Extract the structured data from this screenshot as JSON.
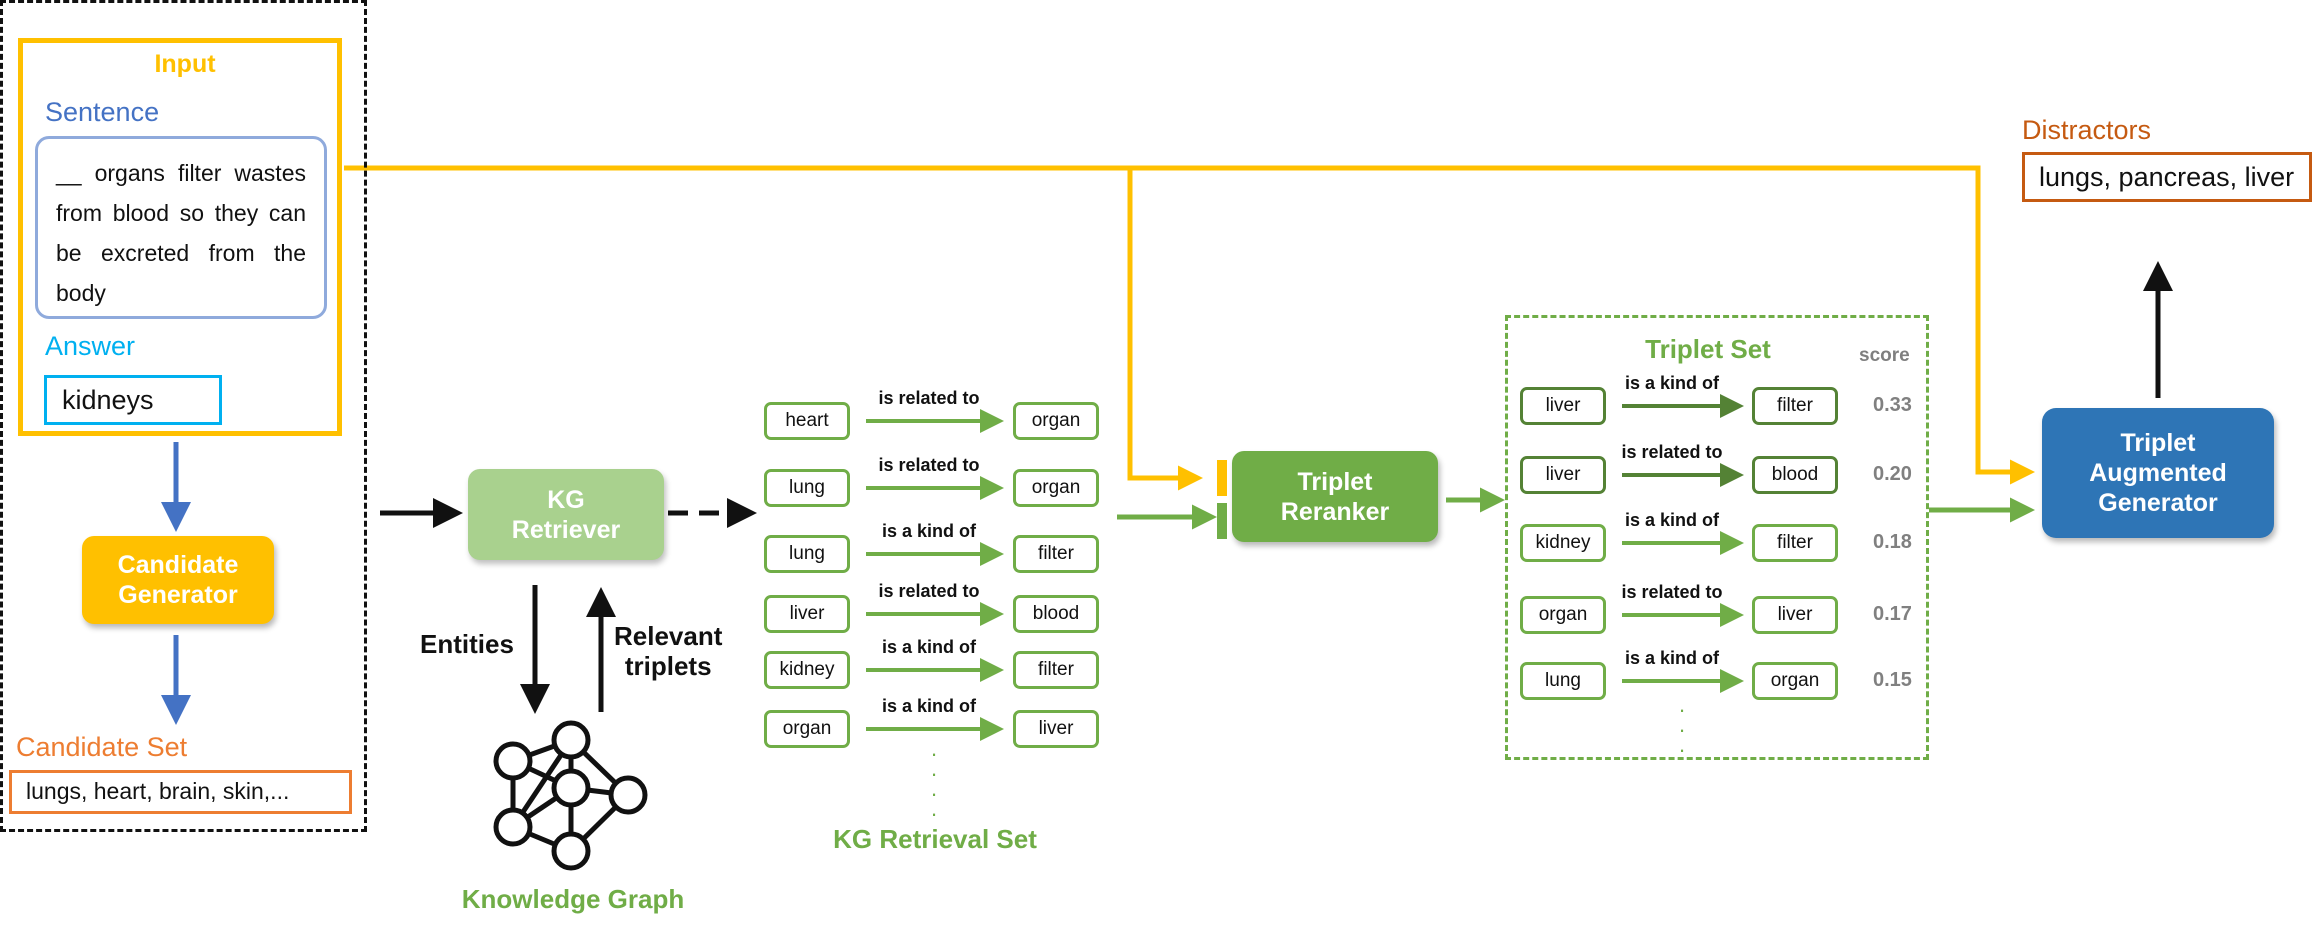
{
  "input": {
    "title": "Input",
    "sentence_label": "Sentence",
    "sentence": "__ organs filter wastes from blood so they can be excreted from the body",
    "answer_label": "Answer",
    "answer": "kidneys"
  },
  "candidate_generator": {
    "line1": "Candidate",
    "line2": "Generator"
  },
  "candidate_set": {
    "label": "Candidate Set",
    "value": "lungs, heart, brain, skin,..."
  },
  "kg_retriever": {
    "line1": "KG",
    "line2": "Retriever"
  },
  "entities_label": "Entities",
  "relevant_triplets": {
    "line1": "Relevant",
    "line2": "triplets"
  },
  "knowledge_graph_label": "Knowledge Graph",
  "kg_retrieval": {
    "label": "KG Retrieval Set",
    "triplets": [
      {
        "head": "heart",
        "relation": "is related to",
        "tail": "organ"
      },
      {
        "head": "lung",
        "relation": "is related to",
        "tail": "organ"
      },
      {
        "head": "lung",
        "relation": "is a kind of",
        "tail": "filter"
      },
      {
        "head": "liver",
        "relation": "is related to",
        "tail": "blood"
      },
      {
        "head": "kidney",
        "relation": "is a kind of",
        "tail": "filter"
      },
      {
        "head": "organ",
        "relation": "is a kind of",
        "tail": "liver"
      }
    ]
  },
  "reranker": {
    "line1": "Triplet",
    "line2": "Reranker"
  },
  "triplet_set": {
    "title": "Triplet Set",
    "score_label": "score",
    "triplets": [
      {
        "head": "liver",
        "relation": "is a kind of",
        "tail": "filter",
        "score": "0.33"
      },
      {
        "head": "liver",
        "relation": "is related to",
        "tail": "blood",
        "score": "0.20"
      },
      {
        "head": "kidney",
        "relation": "is a kind of",
        "tail": "filter",
        "score": "0.18"
      },
      {
        "head": "organ",
        "relation": "is related to",
        "tail": "liver",
        "score": "0.17"
      },
      {
        "head": "lung",
        "relation": "is a kind of",
        "tail": "organ",
        "score": "0.15"
      }
    ]
  },
  "generator": {
    "line1": "Triplet",
    "line2": "Augmented",
    "line3": "Generator"
  },
  "distractors": {
    "label": "Distractors",
    "value": "lungs, pancreas, liver"
  },
  "colors": {
    "input": "#ffc000",
    "sentence": "#4472c4",
    "answer": "#00b0f0",
    "candidate": "#ed7d31",
    "kg_retriever": "#a9d18e",
    "green": "#70ad47",
    "dark_green": "#548235",
    "generator": "#2e75b6",
    "distractors": "#c55a11"
  }
}
